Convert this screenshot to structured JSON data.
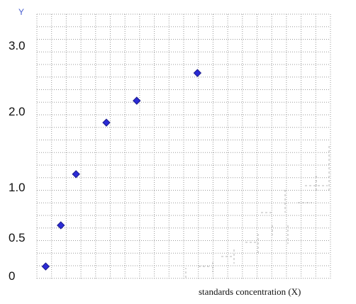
{
  "chart_data": {
    "type": "scatter",
    "xlabel": "standards concentration (X)",
    "ylabel": "Y",
    "y_ticks": [
      {
        "value": 0,
        "label": "0"
      },
      {
        "value": 0.5,
        "label": "0.5"
      },
      {
        "value": 1.0,
        "label": "1.0"
      },
      {
        "value": 2.0,
        "label": "2.0"
      },
      {
        "value": 3.0,
        "label": "3.0"
      }
    ],
    "points": [
      {
        "x": 1,
        "y": 0.12
      },
      {
        "x": 2,
        "y": 0.62
      },
      {
        "x": 3,
        "y": 1.17
      },
      {
        "x": 5,
        "y": 1.85
      },
      {
        "x": 7,
        "y": 2.16
      },
      {
        "x": 11,
        "y": 2.58
      }
    ],
    "colors": {
      "marker": "#2b2bd6",
      "marker_edge": "#1a1a8a",
      "grid": "#9a9a9a"
    },
    "grid": true
  }
}
